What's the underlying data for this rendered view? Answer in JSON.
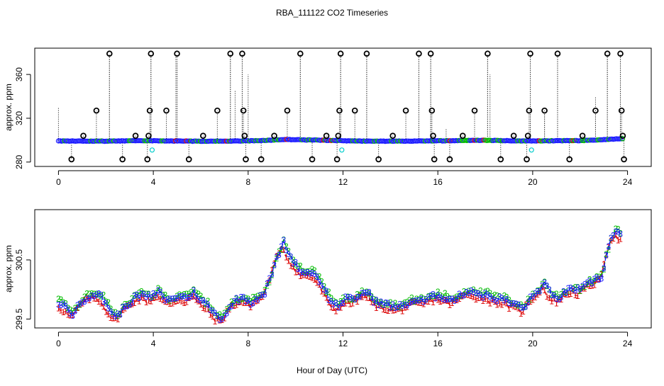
{
  "title": "RBA_111122  CO2 Timeseries",
  "xlabel": "Hour of Day (UTC)",
  "chart_data": [
    {
      "type": "scatter",
      "ylabel": "approx. ppm",
      "xlim": [
        -1,
        25
      ],
      "ylim": [
        276,
        384
      ],
      "xticks": [
        0,
        4,
        8,
        12,
        16,
        20,
        24
      ],
      "xtick_labels": [
        "0",
        "4",
        "8",
        "12",
        "16",
        "20",
        "24"
      ],
      "yticks": [
        280,
        320,
        360
      ],
      "ytick_labels": [
        "280",
        "320",
        "360"
      ],
      "colors": {
        "black": "#000000",
        "blue": "#1a1aff",
        "green": "#00bb00",
        "red": "#dd0000",
        "cyan": "#00cccc"
      },
      "baseline": [
        [
          0.0,
          299.2
        ],
        [
          2.0,
          299.1
        ],
        [
          3.5,
          299.6
        ],
        [
          4.5,
          299.3
        ],
        [
          6.0,
          299.0
        ],
        [
          7.5,
          299.2
        ],
        [
          8.5,
          299.6
        ],
        [
          9.5,
          300.6
        ],
        [
          10.5,
          300.2
        ],
        [
          11.5,
          299.8
        ],
        [
          12.5,
          299.2
        ],
        [
          14.0,
          299.0
        ],
        [
          15.5,
          299.3
        ],
        [
          16.5,
          299.5
        ],
        [
          18.0,
          299.9
        ],
        [
          19.5,
          299.3
        ],
        [
          20.5,
          299.4
        ],
        [
          22.0,
          299.6
        ],
        [
          23.0,
          300.4
        ],
        [
          23.8,
          301.4
        ]
      ],
      "black_points": [
        [
          0.55,
          282.5
        ],
        [
          1.05,
          304
        ],
        [
          1.6,
          327
        ],
        [
          2.15,
          379
        ],
        [
          2.7,
          282.5
        ],
        [
          3.25,
          304
        ],
        [
          3.75,
          282.5
        ],
        [
          3.8,
          304
        ],
        [
          3.85,
          327
        ],
        [
          3.9,
          379
        ],
        [
          4.55,
          327
        ],
        [
          5.0,
          379
        ],
        [
          5.5,
          282.5
        ],
        [
          6.1,
          304
        ],
        [
          6.7,
          327
        ],
        [
          7.25,
          379
        ],
        [
          7.75,
          379
        ],
        [
          7.8,
          327
        ],
        [
          7.85,
          304
        ],
        [
          7.9,
          282.5
        ],
        [
          8.55,
          282.5
        ],
        [
          9.1,
          304
        ],
        [
          9.65,
          327
        ],
        [
          10.2,
          379
        ],
        [
          10.7,
          282.5
        ],
        [
          11.3,
          304
        ],
        [
          11.75,
          282.5
        ],
        [
          11.8,
          304
        ],
        [
          11.85,
          327
        ],
        [
          11.9,
          379
        ],
        [
          12.5,
          327
        ],
        [
          13.0,
          379
        ],
        [
          13.5,
          282.5
        ],
        [
          14.1,
          304
        ],
        [
          14.65,
          327
        ],
        [
          15.2,
          379
        ],
        [
          15.7,
          379
        ],
        [
          15.75,
          327
        ],
        [
          15.8,
          304
        ],
        [
          15.85,
          282.5
        ],
        [
          16.5,
          282.5
        ],
        [
          17.05,
          304
        ],
        [
          17.55,
          327
        ],
        [
          18.1,
          379
        ],
        [
          18.65,
          282.5
        ],
        [
          19.2,
          304
        ],
        [
          19.75,
          282.5
        ],
        [
          19.8,
          304
        ],
        [
          19.85,
          327
        ],
        [
          19.9,
          379
        ],
        [
          20.5,
          327
        ],
        [
          21.05,
          379
        ],
        [
          21.55,
          282.5
        ],
        [
          22.1,
          304
        ],
        [
          22.65,
          327
        ],
        [
          23.15,
          379
        ],
        [
          23.7,
          379
        ],
        [
          23.75,
          327
        ],
        [
          23.8,
          304
        ],
        [
          23.85,
          282.5
        ]
      ],
      "cyan_points": [
        [
          3.95,
          291
        ],
        [
          11.95,
          291
        ],
        [
          19.95,
          291
        ]
      ],
      "dotted_spikes": [
        [
          0.0,
          330
        ],
        [
          2.15,
          379
        ],
        [
          3.9,
          379
        ],
        [
          4.95,
          379
        ],
        [
          5.0,
          370
        ],
        [
          7.25,
          379
        ],
        [
          7.45,
          345
        ],
        [
          7.75,
          379
        ],
        [
          8.0,
          360
        ],
        [
          10.2,
          379
        ],
        [
          11.9,
          379
        ],
        [
          13.0,
          379
        ],
        [
          15.2,
          379
        ],
        [
          15.7,
          379
        ],
        [
          16.35,
          310
        ],
        [
          18.1,
          379
        ],
        [
          18.2,
          360
        ],
        [
          19.9,
          379
        ],
        [
          20.5,
          327
        ],
        [
          21.05,
          379
        ],
        [
          22.65,
          340
        ],
        [
          23.15,
          379
        ],
        [
          23.7,
          379
        ]
      ]
    },
    {
      "type": "line",
      "ylabel": "approx. ppm",
      "xlim": [
        -1,
        25
      ],
      "ylim": [
        299.35,
        301.35
      ],
      "xticks": [
        0,
        4,
        8,
        12,
        16,
        20,
        24
      ],
      "xtick_labels": [
        "0",
        "4",
        "8",
        "12",
        "16",
        "20",
        "24"
      ],
      "yticks": [
        299.5,
        300.5
      ],
      "ytick_labels": [
        "299.5",
        "300.5"
      ],
      "colors": {
        "s1": "#dd0000",
        "s2": "#00bb00",
        "s3": "#1a1aff"
      },
      "series": [
        {
          "marker": "1",
          "color_key": "s1",
          "offset": -0.06,
          "dx": 0.07
        },
        {
          "marker": "2",
          "color_key": "s2",
          "offset": 0.03,
          "dx": -0.03
        },
        {
          "marker": "3",
          "color_key": "s3",
          "offset": 0.0,
          "dx": 0.0
        }
      ],
      "profile": [
        [
          0.0,
          299.78
        ],
        [
          0.3,
          299.7
        ],
        [
          0.6,
          299.58
        ],
        [
          0.9,
          299.75
        ],
        [
          1.2,
          299.88
        ],
        [
          1.5,
          299.92
        ],
        [
          1.8,
          299.88
        ],
        [
          2.1,
          299.7
        ],
        [
          2.4,
          299.52
        ],
        [
          2.7,
          299.66
        ],
        [
          3.0,
          299.78
        ],
        [
          3.3,
          299.88
        ],
        [
          3.6,
          299.9
        ],
        [
          3.9,
          299.86
        ],
        [
          4.2,
          299.96
        ],
        [
          4.5,
          299.84
        ],
        [
          4.8,
          299.82
        ],
        [
          5.1,
          299.9
        ],
        [
          5.4,
          299.85
        ],
        [
          5.7,
          299.95
        ],
        [
          6.0,
          299.82
        ],
        [
          6.3,
          299.72
        ],
        [
          6.6,
          299.58
        ],
        [
          6.9,
          299.5
        ],
        [
          7.2,
          299.7
        ],
        [
          7.5,
          299.82
        ],
        [
          7.8,
          299.86
        ],
        [
          8.1,
          299.78
        ],
        [
          8.4,
          299.86
        ],
        [
          8.7,
          299.95
        ],
        [
          9.0,
          300.28
        ],
        [
          9.3,
          300.62
        ],
        [
          9.5,
          300.8
        ],
        [
          9.7,
          300.6
        ],
        [
          10.0,
          300.42
        ],
        [
          10.3,
          300.28
        ],
        [
          10.6,
          300.3
        ],
        [
          10.9,
          300.22
        ],
        [
          11.2,
          300.02
        ],
        [
          11.5,
          299.78
        ],
        [
          11.8,
          299.72
        ],
        [
          12.1,
          299.84
        ],
        [
          12.4,
          299.82
        ],
        [
          12.7,
          299.9
        ],
        [
          13.0,
          299.96
        ],
        [
          13.3,
          299.82
        ],
        [
          13.6,
          299.76
        ],
        [
          13.9,
          299.74
        ],
        [
          14.2,
          299.7
        ],
        [
          14.5,
          299.72
        ],
        [
          14.8,
          299.78
        ],
        [
          15.1,
          299.82
        ],
        [
          15.4,
          299.8
        ],
        [
          15.7,
          299.86
        ],
        [
          16.0,
          299.9
        ],
        [
          16.3,
          299.86
        ],
        [
          16.6,
          299.82
        ],
        [
          16.9,
          299.88
        ],
        [
          17.2,
          299.96
        ],
        [
          17.5,
          299.98
        ],
        [
          17.8,
          299.9
        ],
        [
          18.1,
          299.9
        ],
        [
          18.4,
          299.84
        ],
        [
          18.7,
          299.84
        ],
        [
          19.0,
          299.78
        ],
        [
          19.3,
          299.74
        ],
        [
          19.6,
          299.68
        ],
        [
          19.9,
          299.84
        ],
        [
          20.2,
          299.96
        ],
        [
          20.5,
          300.1
        ],
        [
          20.8,
          299.88
        ],
        [
          21.1,
          299.86
        ],
        [
          21.4,
          299.96
        ],
        [
          21.7,
          300.02
        ],
        [
          22.0,
          299.98
        ],
        [
          22.3,
          300.08
        ],
        [
          22.6,
          300.16
        ],
        [
          22.9,
          300.2
        ],
        [
          23.1,
          300.58
        ],
        [
          23.3,
          300.85
        ],
        [
          23.5,
          300.98
        ],
        [
          23.7,
          300.9
        ]
      ]
    }
  ]
}
